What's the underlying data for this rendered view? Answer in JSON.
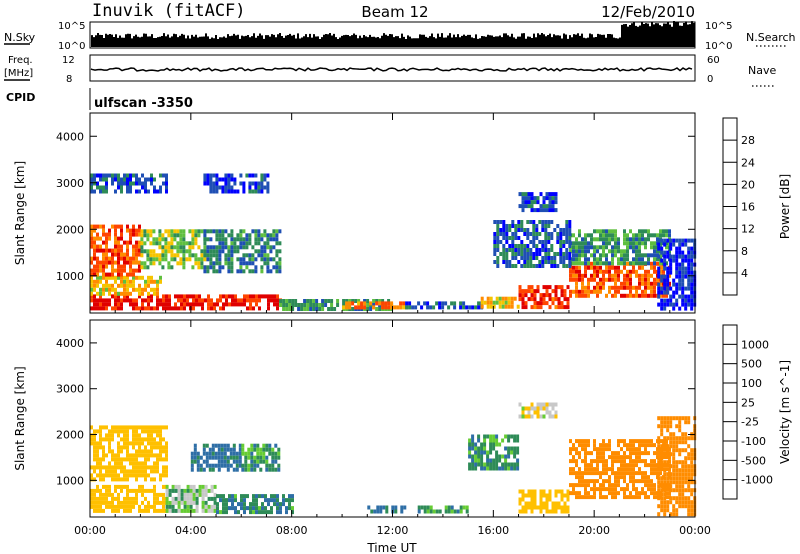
{
  "header": {
    "station": "Inuvik (fitACF)",
    "beam": "Beam 12",
    "date": "12/Feb/2010"
  },
  "strips": {
    "nsky_label": "N.Sky",
    "nsearch_label": "N.Search",
    "nsky_ticks": [
      "10^5",
      "10^0"
    ],
    "nsearch_ticks": [
      "10^5",
      "10^0"
    ],
    "freq_label": "Freq.",
    "freq_unit": "[MHz]",
    "freq_ticks": [
      "12",
      "8"
    ],
    "nave_label": "Nave",
    "nave_ticks": [
      "60",
      "0"
    ],
    "cpid_label": "CPID",
    "cpid_value": "ulfscan -3350"
  },
  "colors": {
    "power_scale": [
      "#0000ff",
      "#1f4fb4",
      "#2e8b57",
      "#5fbf3f",
      "#f5c400",
      "#ff8c00",
      "#ff4500",
      "#e00000"
    ],
    "velocity_scale": [
      "#1f3fb4",
      "#2e6ea6",
      "#2e8b57",
      "#66cc33",
      "#c8c8c8",
      "#ffc000",
      "#ff8c00",
      "#ff4500",
      "#e00000"
    ]
  },
  "chart_data": [
    {
      "type": "heatmap",
      "title": "Power",
      "xlabel": "Time UT",
      "ylabel": "Slant Range [km]",
      "x_ticks": [
        "00:00",
        "04:00",
        "08:00",
        "12:00",
        "16:00",
        "20:00",
        "00:00"
      ],
      "y_ticks": [
        "1000",
        "2000",
        "3000",
        "4000"
      ],
      "ylim": [
        200,
        4500
      ],
      "colorbar": {
        "label": "Power [dB]",
        "ticks": [
          "4",
          "8",
          "12",
          "16",
          "20",
          "24",
          "28"
        ],
        "range": [
          0,
          30
        ]
      },
      "regions": [
        {
          "t": [
            0.0,
            7.5
          ],
          "r": [
            300,
            600
          ],
          "v": 27
        },
        {
          "t": [
            0.0,
            2.8
          ],
          "r": [
            600,
            1000
          ],
          "v": 18
        },
        {
          "t": [
            0.0,
            2.0
          ],
          "r": [
            1000,
            2100
          ],
          "v": 24
        },
        {
          "t": [
            2.0,
            4.5
          ],
          "r": [
            1200,
            2000
          ],
          "v": 14
        },
        {
          "t": [
            4.5,
            7.5
          ],
          "r": [
            1100,
            2000
          ],
          "v": 8
        },
        {
          "t": [
            0.0,
            3.0
          ],
          "r": [
            2800,
            3200
          ],
          "v": 5
        },
        {
          "t": [
            4.5,
            7.0
          ],
          "r": [
            2800,
            3200
          ],
          "v": 4
        },
        {
          "t": [
            7.5,
            12.0
          ],
          "r": [
            300,
            500
          ],
          "v": 10
        },
        {
          "t": [
            10.0,
            12.5
          ],
          "r": [
            300,
            450
          ],
          "v": 22
        },
        {
          "t": [
            12.5,
            15.5
          ],
          "r": [
            300,
            450
          ],
          "v": 6
        },
        {
          "t": [
            15.5,
            17.0
          ],
          "r": [
            300,
            550
          ],
          "v": 18
        },
        {
          "t": [
            17.0,
            19.0
          ],
          "r": [
            300,
            800
          ],
          "v": 26
        },
        {
          "t": [
            19.0,
            23.0
          ],
          "r": [
            600,
            1300
          ],
          "v": 24
        },
        {
          "t": [
            19.0,
            23.0
          ],
          "r": [
            1300,
            2000
          ],
          "v": 10
        },
        {
          "t": [
            16.0,
            19.0
          ],
          "r": [
            1200,
            2200
          ],
          "v": 6
        },
        {
          "t": [
            17.0,
            18.5
          ],
          "r": [
            2400,
            2800
          ],
          "v": 5
        },
        {
          "t": [
            22.5,
            24.0
          ],
          "r": [
            300,
            1800
          ],
          "v": 3
        }
      ]
    },
    {
      "type": "heatmap",
      "title": "Velocity",
      "xlabel": "Time UT",
      "ylabel": "Slant Range [km]",
      "x_ticks": [
        "00:00",
        "04:00",
        "08:00",
        "12:00",
        "16:00",
        "20:00",
        "00:00"
      ],
      "y_ticks": [
        "1000",
        "2000",
        "3000",
        "4000"
      ],
      "ylim": [
        200,
        4500
      ],
      "colorbar": {
        "label": "Velocity [m s^-1]",
        "ticks": [
          "1000",
          "500",
          "100",
          "25",
          "-25",
          "-100",
          "-500",
          "-1000"
        ]
      },
      "regions": [
        {
          "t": [
            0.0,
            3.0
          ],
          "r": [
            300,
            900
          ],
          "v": -200
        },
        {
          "t": [
            0.0,
            3.0
          ],
          "r": [
            1000,
            2200
          ],
          "v": -300
        },
        {
          "t": [
            3.0,
            5.0
          ],
          "r": [
            300,
            900
          ],
          "v": 0
        },
        {
          "t": [
            4.0,
            6.0
          ],
          "r": [
            1200,
            1800
          ],
          "v": 150
        },
        {
          "t": [
            5.0,
            8.0
          ],
          "r": [
            300,
            700
          ],
          "v": 80
        },
        {
          "t": [
            6.0,
            7.5
          ],
          "r": [
            1200,
            1800
          ],
          "v": 60
        },
        {
          "t": [
            11.0,
            12.5
          ],
          "r": [
            300,
            450
          ],
          "v": 120
        },
        {
          "t": [
            13.0,
            15.0
          ],
          "r": [
            300,
            450
          ],
          "v": 60
        },
        {
          "t": [
            17.0,
            19.0
          ],
          "r": [
            300,
            800
          ],
          "v": -250
        },
        {
          "t": [
            19.0,
            23.0
          ],
          "r": [
            600,
            1900
          ],
          "v": -600
        },
        {
          "t": [
            22.5,
            24.0
          ],
          "r": [
            300,
            2400
          ],
          "v": -700
        },
        {
          "t": [
            17.0,
            18.5
          ],
          "r": [
            2400,
            2700
          ],
          "v": -80
        },
        {
          "t": [
            15.0,
            17.0
          ],
          "r": [
            1300,
            2000
          ],
          "v": 60
        }
      ]
    }
  ]
}
